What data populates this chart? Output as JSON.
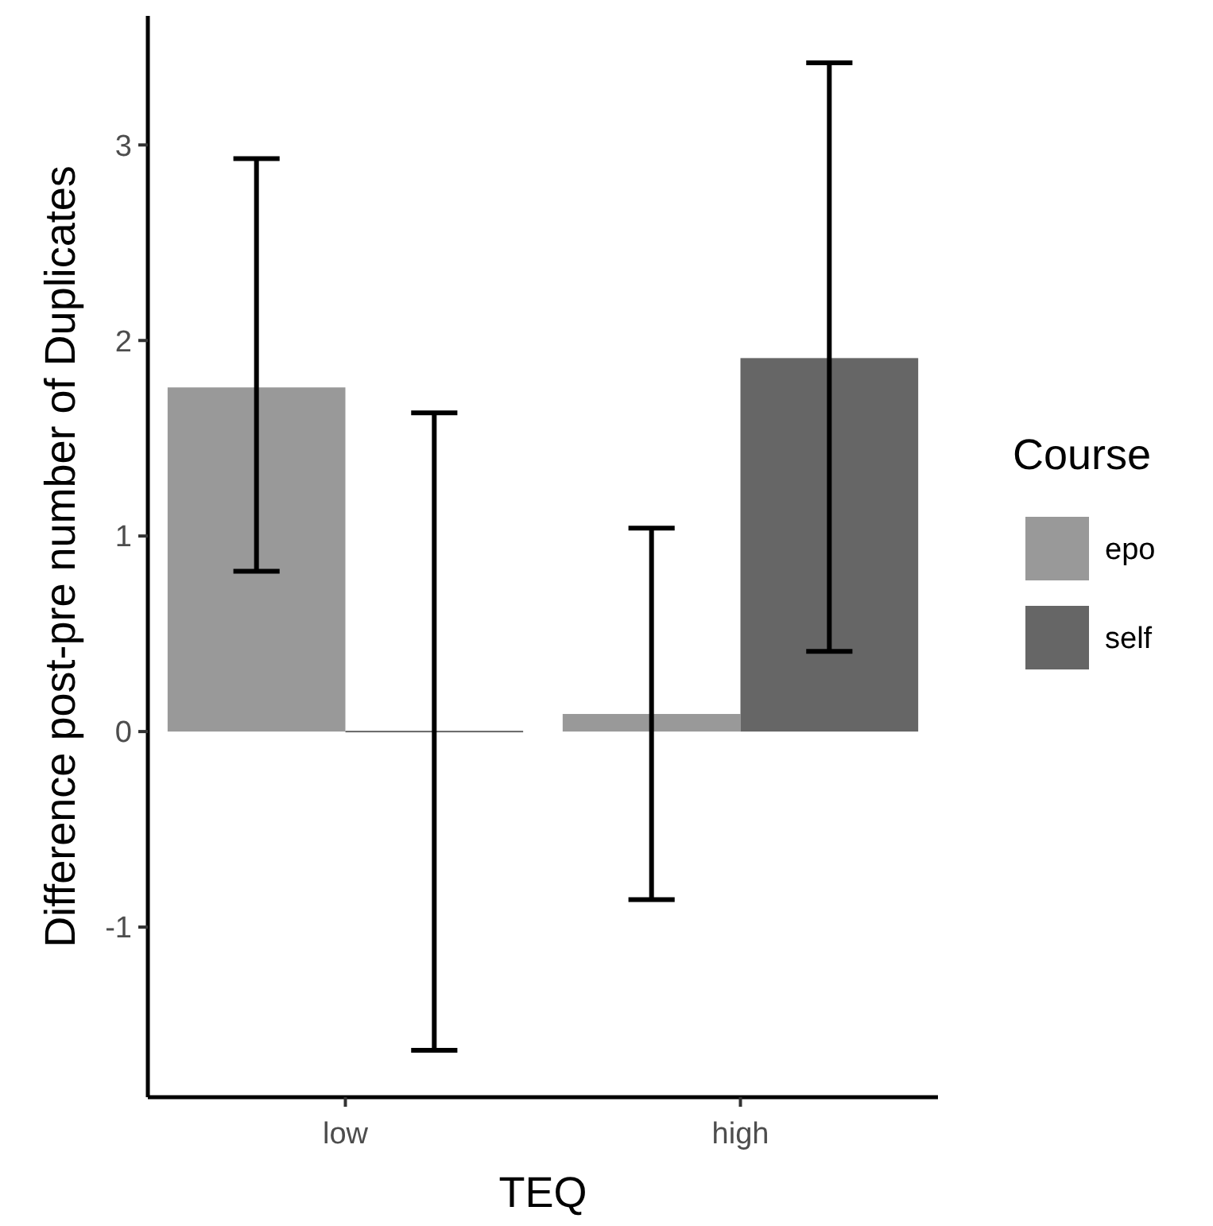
{
  "chart_data": {
    "type": "bar",
    "xlabel": "TEQ",
    "ylabel": "Difference post-pre number of Duplicates",
    "legend_title": "Course",
    "categories": [
      "low",
      "high"
    ],
    "series": [
      {
        "name": "epo",
        "color": "#999999",
        "values": [
          1.76,
          0.09
        ],
        "errors": [
          [
            0.82,
            2.93
          ],
          [
            -0.86,
            1.04
          ]
        ]
      },
      {
        "name": "self",
        "color": "#666666",
        "values": [
          0,
          1.91
        ],
        "errors": [
          [
            -1.63,
            1.63
          ],
          [
            0.41,
            3.42
          ]
        ]
      }
    ],
    "ylim": [
      -1.87,
      3.66
    ],
    "yticks": [
      -1,
      0,
      1,
      2,
      3
    ],
    "grid": false,
    "legend": "right"
  }
}
